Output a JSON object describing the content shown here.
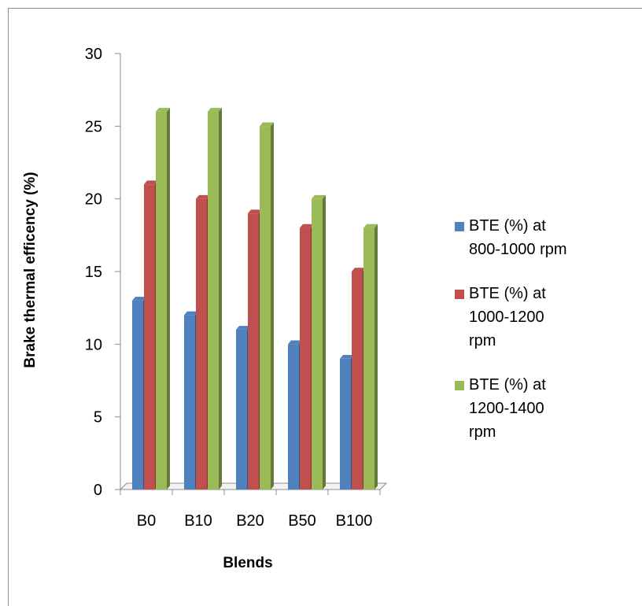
{
  "chart_data": {
    "type": "bar",
    "categories": [
      "B0",
      "B10",
      "B20",
      "B50",
      "B100"
    ],
    "series": [
      {
        "name": "BTE (%) at\n800-1000 rpm",
        "values": [
          13,
          12,
          11,
          10,
          9
        ],
        "color": "#4f81bd"
      },
      {
        "name": "BTE (%) at\n1000-1200\nrpm",
        "values": [
          21,
          20,
          19,
          18,
          15
        ],
        "color": "#c0504d"
      },
      {
        "name": "BTE (%) at\n1200-1400\nrpm",
        "values": [
          26,
          26,
          25,
          20,
          18
        ],
        "color": "#9bbb59"
      }
    ],
    "xlabel": "Blends",
    "ylabel": "Brake thermal efficency (%)",
    "ylim": [
      0,
      30
    ],
    "yticks": [
      0,
      5,
      10,
      15,
      20,
      25,
      30
    ],
    "style": "3d-clustered",
    "grid": false,
    "legend": "right"
  }
}
